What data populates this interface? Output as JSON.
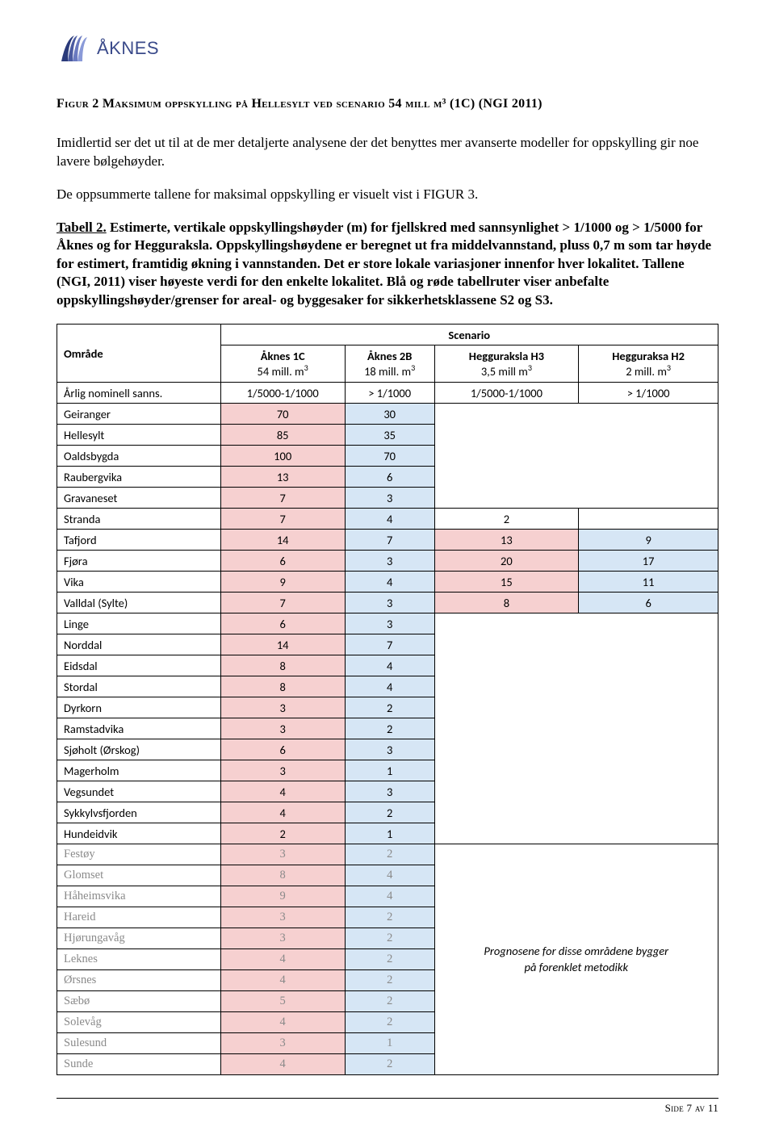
{
  "logo": {
    "text": "ÅKNES",
    "color": "#3a4a8a"
  },
  "figure_caption": "Figur 2  Maksimum oppskylling på Hellesylt ved scenario 54 mill m³ (1C) (NGI 2011)",
  "para1": "Imidlertid ser det ut til at de mer detaljerte analysene der det benyttes mer avanserte modeller for oppskylling gir noe lavere bølgehøyder.",
  "para2": "De oppsummerte tallene for maksimal oppskylling er visuelt vist i FIGUR 3.",
  "tabell_label": "Tabell 2.",
  "tabell_text_bold": " Estimerte, vertikale oppskyllingshøyder (m) for fjellskred med sannsynlighet > 1/1000 og > 1/5000 for Åknes og for Hegguraksla. Oppskyllingshøydene er beregnet ut fra middelvannstand, pluss 0,7 m som tar høyde for estimert, framtidig økning i vannstanden. Det er store lokale variasjoner innenfor hver lokalitet. Tallene (NGI, 2011) viser høyeste verdi for den enkelte lokalitet. Blå og røde tabellruter viser anbefalte oppskyllingshøyder/grenser for areal- og byggesaker for sikkerhetsklassene S2 og S3.",
  "table": {
    "colors": {
      "pink": "#f6d0d0",
      "blue": "#d6e6f5",
      "faded_text": "#8a8a8a"
    },
    "omrade_hdr": "Område",
    "scenario_hdr": "Scenario",
    "cols": [
      {
        "title": "Åknes 1C",
        "sub": "54 mill. m³"
      },
      {
        "title": "Åknes 2B",
        "sub": "18 mill. m³"
      },
      {
        "title": "Hegguraksla H3",
        "sub": "3,5 mill m³"
      },
      {
        "title": "Hegguraksa H2",
        "sub": "2 mill. m³"
      }
    ],
    "prob_row": {
      "label": "Årlig nominell sanns.",
      "vals": [
        "1/5000-1/1000",
        "> 1/1000",
        "1/5000-1/1000",
        "> 1/1000"
      ]
    },
    "rows_top": [
      {
        "label": "Geiranger",
        "c1": "70",
        "c2": "30"
      },
      {
        "label": "Hellesylt",
        "c1": "85",
        "c2": "35"
      },
      {
        "label": "Oaldsbygda",
        "c1": "100",
        "c2": "70"
      },
      {
        "label": "Raubergvika",
        "c1": "13",
        "c2": "6"
      },
      {
        "label": "Gravaneset",
        "c1": "7",
        "c2": "3"
      }
    ],
    "rows_mid1": [
      {
        "label": "Stranda",
        "c1": "7",
        "c2": "4",
        "c3": "2"
      }
    ],
    "rows_full": [
      {
        "label": "Tafjord",
        "c1": "14",
        "c2": "7",
        "c3": "13",
        "c4": "9"
      },
      {
        "label": "Fjøra",
        "c1": "6",
        "c2": "3",
        "c3": "20",
        "c4": "17"
      },
      {
        "label": "Vika",
        "c1": "9",
        "c2": "4",
        "c3": "15",
        "c4": "11"
      },
      {
        "label": "Valldal (Sylte)",
        "c1": "7",
        "c2": "3",
        "c3": "8",
        "c4": "6"
      }
    ],
    "rows_bot1": [
      {
        "label": "Linge",
        "c1": "6",
        "c2": "3"
      },
      {
        "label": "Norddal",
        "c1": "14",
        "c2": "7"
      },
      {
        "label": "Eidsdal",
        "c1": "8",
        "c2": "4"
      },
      {
        "label": "Stordal",
        "c1": "8",
        "c2": "4"
      },
      {
        "label": "Dyrkorn",
        "c1": "3",
        "c2": "2"
      },
      {
        "label": "Ramstadvika",
        "c1": "3",
        "c2": "2"
      },
      {
        "label": "Sjøholt (Ørskog)",
        "c1": "6",
        "c2": "3"
      },
      {
        "label": "Magerholm",
        "c1": "3",
        "c2": "1"
      },
      {
        "label": "Vegsundet",
        "c1": "4",
        "c2": "3"
      },
      {
        "label": "Sykkylvsfjorden",
        "c1": "4",
        "c2": "2"
      },
      {
        "label": "Hundeidvik",
        "c1": "2",
        "c2": "1"
      }
    ],
    "rows_faded": [
      {
        "label": "Festøy",
        "c1": "3",
        "c2": "2"
      },
      {
        "label": "Glomset",
        "c1": "8",
        "c2": "4"
      },
      {
        "label": "Håheimsvika",
        "c1": "9",
        "c2": "4"
      },
      {
        "label": "Hareid",
        "c1": "3",
        "c2": "2"
      },
      {
        "label": "Hjørungavåg",
        "c1": "3",
        "c2": "2"
      },
      {
        "label": "Leknes",
        "c1": "4",
        "c2": "2"
      },
      {
        "label": "Ørsnes",
        "c1": "4",
        "c2": "2"
      },
      {
        "label": "Sæbø",
        "c1": "5",
        "c2": "2"
      },
      {
        "label": "Solevåg",
        "c1": "4",
        "c2": "2"
      },
      {
        "label": "Sulesund",
        "c1": "3",
        "c2": "1"
      },
      {
        "label": "Sunde",
        "c1": "4",
        "c2": "2"
      }
    ],
    "note_line1": "Prognosene for disse områdene bygger",
    "note_line2": "på forenklet metodikk"
  },
  "footer": "Side 7 av 11"
}
